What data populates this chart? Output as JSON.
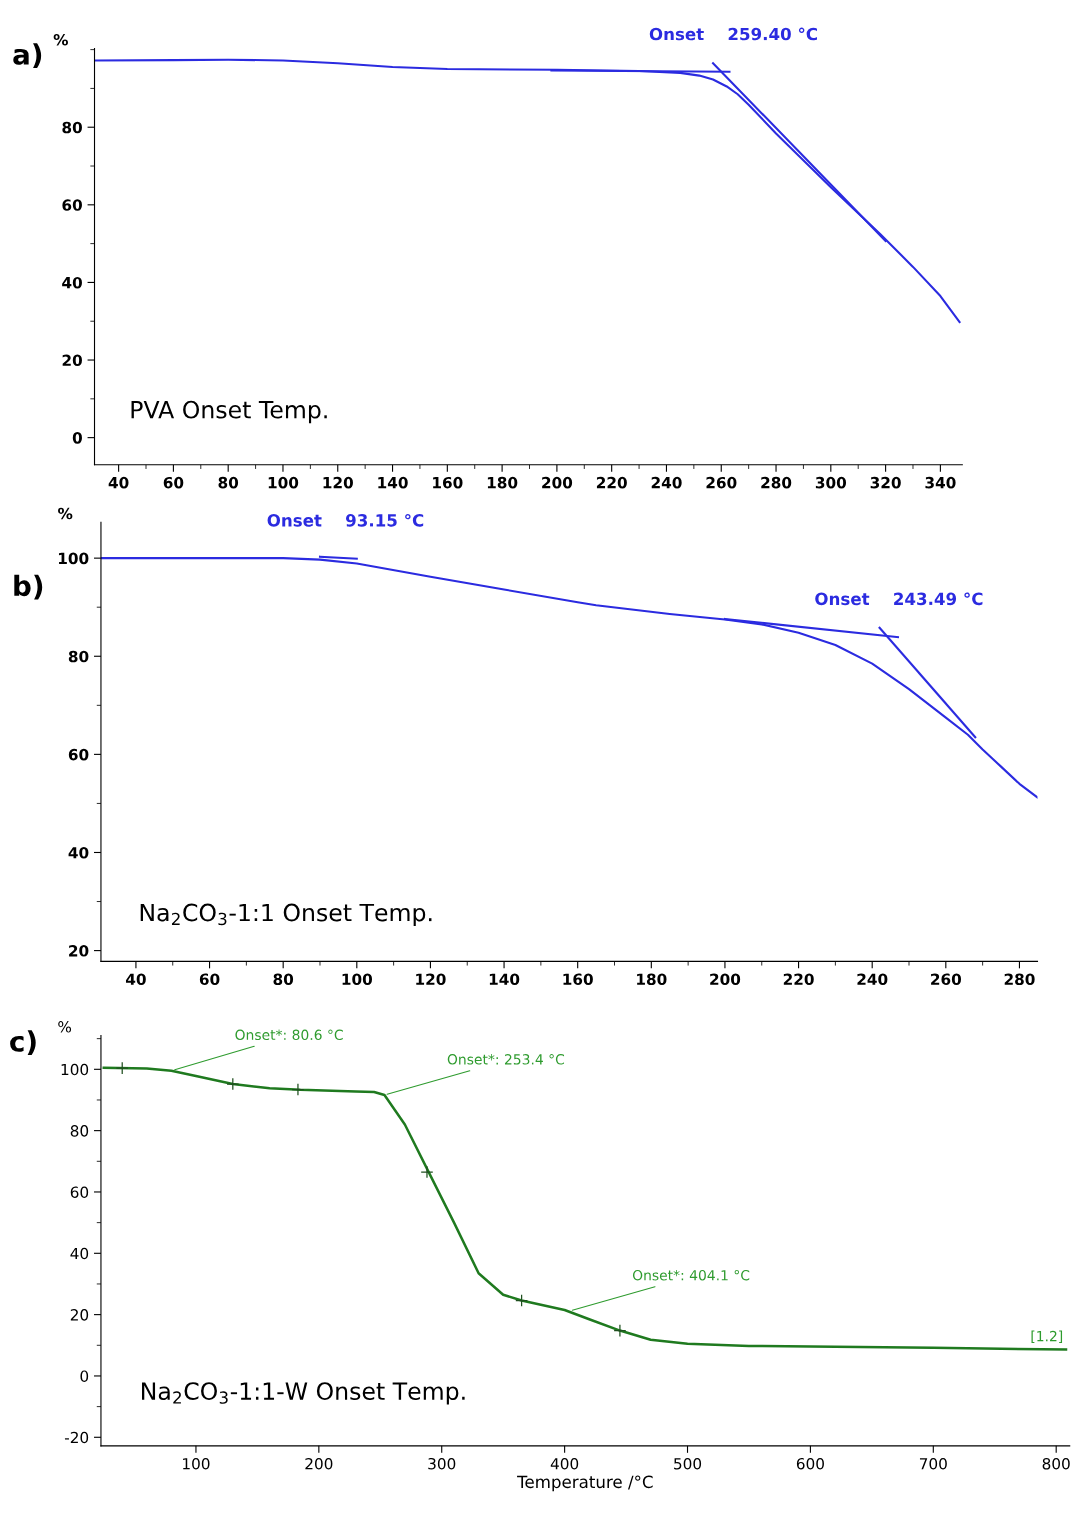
{
  "chart_data": [
    {
      "type": "line",
      "title": "a)",
      "ylabel": "%",
      "xlim": [
        31.2,
        348
      ],
      "ylim": [
        -7,
        100.3
      ],
      "xticks": [
        40,
        {
          "value": 50,
          "label": null
        },
        60,
        {
          "value": 70,
          "label": null
        },
        80,
        {
          "value": 90,
          "label": null
        },
        100,
        {
          "value": 110,
          "label": null
        },
        120,
        {
          "value": 130,
          "label": null
        },
        140,
        {
          "value": 150,
          "label": null
        },
        160,
        {
          "value": 170,
          "label": null
        },
        180,
        {
          "value": 190,
          "label": null
        },
        200,
        {
          "value": 210,
          "label": null
        },
        220,
        {
          "value": 230,
          "label": null
        },
        240,
        {
          "value": 250,
          "label": null
        },
        260,
        {
          "value": 270,
          "label": null
        },
        280,
        {
          "value": 290,
          "label": null
        },
        300,
        {
          "value": 310,
          "label": null
        },
        320,
        {
          "value": 330,
          "label": null
        },
        340
      ],
      "yticks": [
        0,
        {
          "value": 10,
          "label": null
        },
        20,
        {
          "value": 30,
          "label": null
        },
        40,
        {
          "value": 50,
          "label": null
        },
        60,
        {
          "value": 70,
          "label": null
        },
        80,
        {
          "value": 90,
          "label": null
        },
        {
          "value": 100,
          "label": null
        }
      ],
      "grid": false,
      "legend": false,
      "series": [
        {
          "color": "#2b2be0",
          "x": [
            31.2,
            60,
            80,
            100,
            120,
            140,
            160,
            200,
            230,
            245,
            252,
            257,
            262,
            266,
            270,
            280,
            300,
            318,
            330,
            340,
            347
          ],
          "values": [
            97.2,
            97.3,
            97.4,
            97.2,
            96.5,
            95.5,
            95.0,
            94.8,
            94.5,
            94.0,
            93.3,
            92.3,
            90.5,
            88.5,
            85.8,
            78.4,
            64.5,
            52.5,
            44.0,
            36.5,
            29.8
          ]
        },
        {
          "color": "#2b2be0",
          "x": [
            198,
            263
          ],
          "values": [
            94.6,
            94.3
          ]
        },
        {
          "color": "#2b2be0",
          "x": [
            257,
            320
          ],
          "values": [
            96.5,
            50.7
          ]
        }
      ],
      "annotations": [
        {
          "text": "Onset    259.40 °C",
          "x": 259.4,
          "y": 94.4
        },
        "PVA Onset Temp."
      ]
    },
    {
      "type": "line",
      "title": "b)",
      "ylabel": "%",
      "xlim": [
        30.5,
        284.9
      ],
      "ylim": [
        17.8,
        107.3
      ],
      "xticks": [
        40,
        {
          "value": 50,
          "label": null
        },
        60,
        {
          "value": 70,
          "label": null
        },
        80,
        {
          "value": 90,
          "label": null
        },
        100,
        {
          "value": 110,
          "label": null
        },
        120,
        {
          "value": 130,
          "label": null
        },
        140,
        {
          "value": 150,
          "label": null
        },
        160,
        {
          "value": 170,
          "label": null
        },
        180,
        {
          "value": 190,
          "label": null
        },
        200,
        {
          "value": 210,
          "label": null
        },
        220,
        {
          "value": 230,
          "label": null
        },
        240,
        {
          "value": 250,
          "label": null
        },
        260,
        {
          "value": 270,
          "label": null
        },
        280
      ],
      "yticks": [
        20,
        {
          "value": 30,
          "label": null
        },
        40,
        {
          "value": 50,
          "label": null
        },
        60,
        {
          "value": 70,
          "label": null
        },
        80,
        {
          "value": 90,
          "label": null
        },
        100
      ],
      "grid": false,
      "legend": false,
      "series": [
        {
          "color": "#2b2be0",
          "x": [
            30.5,
            60,
            80,
            90,
            100,
            120,
            140,
            160,
            165,
            185,
            200,
            210,
            220,
            230,
            240,
            250,
            260,
            266,
            270,
            275,
            280,
            284.9
          ],
          "values": [
            100,
            100,
            100,
            99.7,
            98.9,
            96.2,
            93.6,
            91.0,
            90.4,
            88.6,
            87.5,
            86.5,
            84.8,
            82.3,
            78.5,
            73.3,
            67.5,
            64.0,
            61.0,
            57.5,
            54.0,
            51.2
          ]
        },
        {
          "color": "#2b2be0",
          "x": [
            90,
            100
          ],
          "values": [
            100.3,
            99.9
          ]
        },
        {
          "color": "#2b2be0",
          "x": [
            200,
            247
          ],
          "values": [
            87.6,
            83.9
          ]
        },
        {
          "color": "#2b2be0",
          "x": [
            242,
            268
          ],
          "values": [
            85.8,
            63.5
          ]
        }
      ],
      "annotations": [
        {
          "text": "Onset    93.15 °C",
          "x": 93.15,
          "y": 100.1
        },
        {
          "text": "Onset    243.49 °C",
          "x": 243.49,
          "y": 84.1
        },
        "Na$_{2}$CO$_{3}$-1:1 Onset Temp."
      ]
    },
    {
      "type": "line",
      "title": "c)",
      "ylabel": "%",
      "xlabel": "Temperature /°C",
      "xlim": [
        22.7,
        811
      ],
      "ylim": [
        -22.8,
        111
      ],
      "xticks": [
        100,
        200,
        300,
        400,
        500,
        600,
        700,
        800
      ],
      "yticks": [
        -20,
        {
          "value": -10,
          "label": null
        },
        0,
        {
          "value": 10,
          "label": null
        },
        20,
        {
          "value": 30,
          "label": null
        },
        40,
        {
          "value": 50,
          "label": null
        },
        60,
        {
          "value": 70,
          "label": null
        },
        80,
        {
          "value": 90,
          "label": null
        },
        100,
        {
          "value": 110,
          "label": null
        }
      ],
      "grid": false,
      "legend": false,
      "series": [
        {
          "color": "#1f7a1f",
          "x": [
            25,
            60,
            80,
            100,
            130,
            160,
            185,
            230,
            245,
            253.4,
            270,
            290,
            310,
            330,
            350,
            365,
            400,
            420,
            445,
            470,
            500,
            550,
            600,
            700,
            808
          ],
          "values": [
            100.5,
            100.3,
            99.5,
            97.8,
            95.2,
            93.8,
            93.3,
            92.8,
            92.6,
            91.6,
            82.0,
            66.0,
            50.0,
            33.5,
            26.5,
            24.6,
            21.5,
            18.5,
            14.8,
            11.8,
            10.5,
            9.8,
            9.6,
            9.2,
            8.6
          ]
        },
        {
          "type": "scatter",
          "marker": "cross",
          "color": "#1f4f1f",
          "x": [
            40,
            130,
            183,
            288,
            365,
            445
          ],
          "values": [
            100.4,
            95.2,
            93.4,
            66.5,
            24.6,
            14.8
          ]
        }
      ],
      "annotations": [
        {
          "text": "Onset*: 80.6 °C",
          "x": 80.6,
          "y": 99.6
        },
        {
          "text": "Onset*: 253.4 °C",
          "x": 253.4,
          "y": 91.6
        },
        {
          "text": "Onset*: 404.1 °C",
          "x": 404.1,
          "y": 21.2
        },
        {
          "text": "[1.2]",
          "x": 808,
          "y": 8.6
        },
        "Na$_{2}$CO$_{3}$-1:1-W Onset Temp."
      ]
    }
  ]
}
